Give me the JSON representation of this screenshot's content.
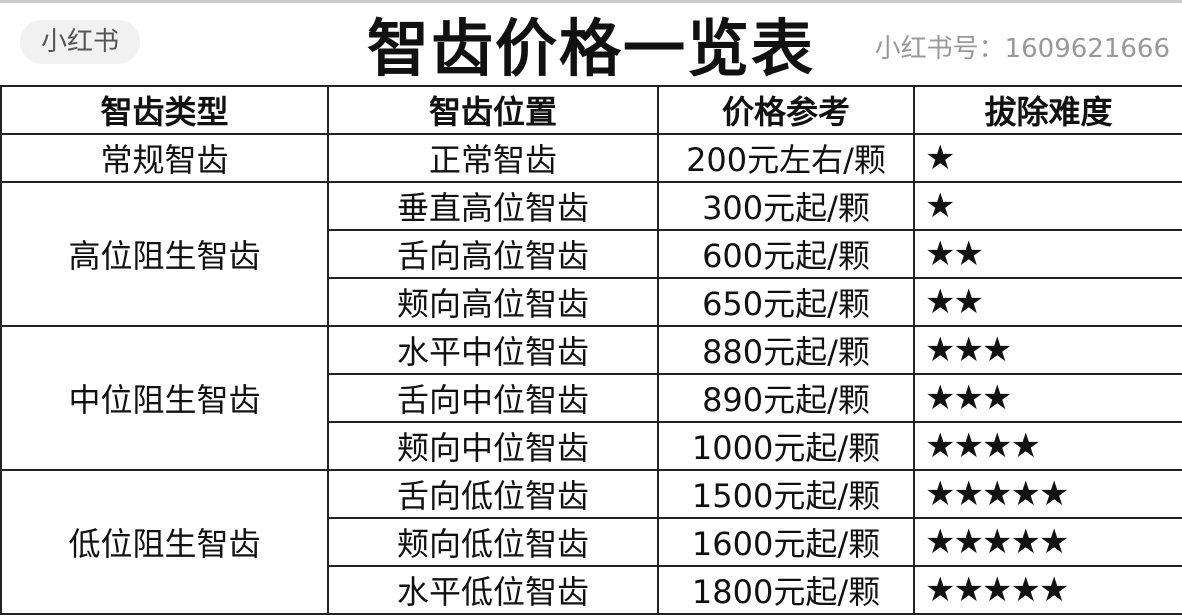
{
  "title": "智齿价格一览表",
  "headers": [
    "智齿类型",
    "智齿位置",
    "价格参考",
    "拔除难度"
  ],
  "groups": [
    {
      "type": "常规智齿",
      "rows": [
        {
          "position": "正常智齿",
          "price": "200元左右/颗",
          "stars": "★",
          "difficulty": 1
        }
      ]
    },
    {
      "type": "高位阻生智齿",
      "rows": [
        {
          "position": "垂直高位智齿",
          "price": "300元起/颗",
          "stars": "★",
          "difficulty": 1
        },
        {
          "position": "舌向高位智齿",
          "price": "600元起/颗",
          "stars": "★★",
          "difficulty": 2
        },
        {
          "position": "颊向高位智齿",
          "price": "650元起/颗",
          "stars": "★★",
          "difficulty": 2
        }
      ]
    },
    {
      "type": "中位阻生智齿",
      "rows": [
        {
          "position": "水平中位智齿",
          "price": "880元起/颗",
          "stars": "★★★",
          "difficulty": 3
        },
        {
          "position": "舌向中位智齿",
          "price": "890元起/颗",
          "stars": "★★★",
          "difficulty": 3
        },
        {
          "position": "颊向中位智齿",
          "price": "1000元起/颗",
          "stars": "★★★★",
          "difficulty": 4
        }
      ]
    },
    {
      "type": "低位阻生智齿",
      "rows": [
        {
          "position": "舌向低位智齿",
          "price": "1500元起/颗",
          "stars": "★★★★★",
          "difficulty": 5
        },
        {
          "position": "颊向低位智齿",
          "price": "1600元起/颗",
          "stars": "★★★★★",
          "difficulty": 5
        },
        {
          "position": "水平低位智齿",
          "price": "1800元起/颗",
          "stars": "★★★★★",
          "difficulty": 5
        }
      ]
    }
  ],
  "watermark": {
    "logo": "小红书",
    "id": "小红书号：1609621666"
  }
}
